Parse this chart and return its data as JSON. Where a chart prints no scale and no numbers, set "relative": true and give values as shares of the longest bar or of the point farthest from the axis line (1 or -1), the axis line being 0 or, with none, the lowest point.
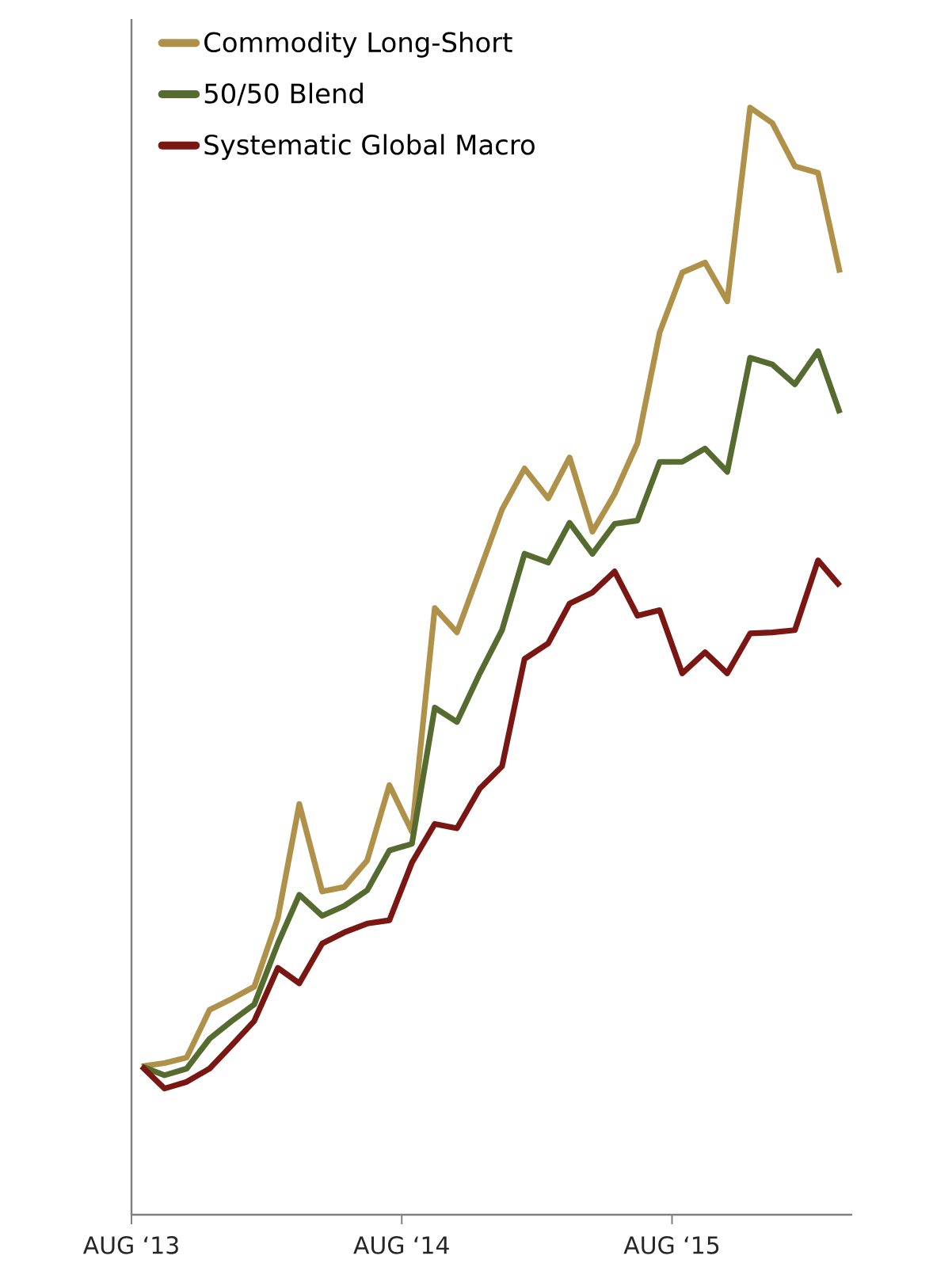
{
  "chart_data": {
    "type": "line",
    "relative": true,
    "legend": "top left",
    "x": [
      "2013-08-15",
      "2013-09-15",
      "2013-10-15",
      "2013-11-15",
      "2013-12-15",
      "2014-01-15",
      "2014-02-15",
      "2014-03-15",
      "2014-04-15",
      "2014-05-15",
      "2014-06-15",
      "2014-07-15",
      "2014-08-15",
      "2014-09-15",
      "2014-10-15",
      "2014-11-15",
      "2014-12-15",
      "2015-01-15",
      "2015-02-15",
      "2015-03-15",
      "2015-04-15",
      "2015-05-15",
      "2015-06-15",
      "2015-07-15",
      "2015-08-15",
      "2015-09-15",
      "2015-10-15",
      "2015-11-15",
      "2015-12-15",
      "2016-01-15",
      "2016-02-15",
      "2016-03-15"
    ],
    "xlim": [
      "2013-08-01",
      "2016-04-01"
    ],
    "xticks": [
      {
        "value": "2013-08-01",
        "label": "AUG ‘13"
      },
      {
        "value": "2014-08-01",
        "label": "AUG ‘14"
      },
      {
        "value": "2015-08-01",
        "label": "AUG ‘15"
      }
    ],
    "series": [
      {
        "name": "Commodity Long-Short",
        "color": "#b09149",
        "values": [
          0.134,
          0.137,
          0.142,
          0.185,
          0.195,
          0.206,
          0.268,
          0.371,
          0.292,
          0.296,
          0.32,
          0.388,
          0.346,
          0.548,
          0.526,
          0.582,
          0.637,
          0.674,
          0.647,
          0.684,
          0.617,
          0.651,
          0.697,
          0.797,
          0.851,
          0.86,
          0.825,
          1,
          0.986,
          0.947,
          0.941,
          0.851
        ]
      },
      {
        "name": "50/50 Blend",
        "color": "#556b2f",
        "values": [
          0.134,
          0.126,
          0.132,
          0.159,
          0.175,
          0.19,
          0.245,
          0.289,
          0.27,
          0.279,
          0.293,
          0.329,
          0.335,
          0.458,
          0.445,
          0.489,
          0.528,
          0.597,
          0.589,
          0.625,
          0.597,
          0.624,
          0.627,
          0.68,
          0.68,
          0.692,
          0.671,
          0.774,
          0.768,
          0.75,
          0.78,
          0.724
        ]
      },
      {
        "name": "Systematic Global Macro",
        "color": "#7a1712",
        "values": [
          0.134,
          0.114,
          0.12,
          0.132,
          0.153,
          0.175,
          0.223,
          0.209,
          0.245,
          0.255,
          0.263,
          0.266,
          0.318,
          0.353,
          0.349,
          0.385,
          0.405,
          0.502,
          0.516,
          0.552,
          0.562,
          0.581,
          0.541,
          0.546,
          0.489,
          0.508,
          0.489,
          0.525,
          0.526,
          0.528,
          0.591,
          0.568
        ]
      }
    ]
  }
}
